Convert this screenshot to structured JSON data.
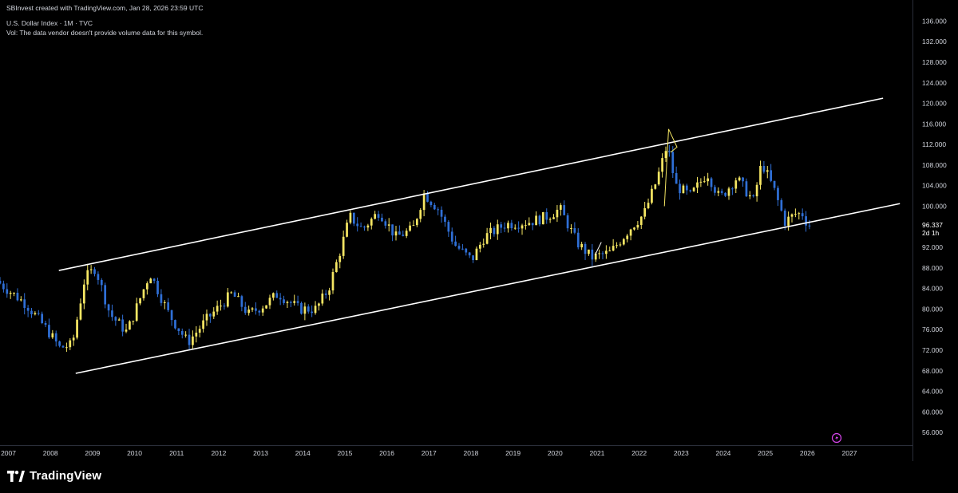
{
  "header": {
    "credit": "SBInvest created with TradingView.com, Jan 28, 2026 23:59 UTC",
    "symbol_line": "U.S. Dollar Index · 1M · TVC",
    "volume_line": "Vol: The data vendor doesn't provide volume data for this symbol."
  },
  "footer": {
    "brand": "TradingView"
  },
  "colors": {
    "background": "#000000",
    "bull_candle": "#f5e663",
    "bear_candle": "#2f6fd6",
    "channel_line": "#ffffff",
    "axis_text": "#d1d4dc"
  },
  "chart_data": {
    "type": "candlestick",
    "interval": "1M",
    "x_axis_ticks": [
      "2007",
      "2008",
      "2009",
      "2010",
      "2011",
      "2012",
      "2013",
      "2014",
      "2015",
      "2016",
      "2017",
      "2018",
      "2019",
      "2020",
      "2021",
      "2022",
      "2023",
      "2024",
      "2025",
      "2026",
      "2027"
    ],
    "y_axis_ticks": [
      "136.000",
      "132.000",
      "128.000",
      "124.000",
      "120.000",
      "116.000",
      "112.000",
      "108.000",
      "104.000",
      "100.000",
      "96.337",
      "92.000",
      "88.000",
      "84.000",
      "80.000",
      "76.000",
      "72.000",
      "68.000",
      "64.000",
      "60.000",
      "56.000"
    ],
    "ylim": [
      54,
      137
    ],
    "xlim": [
      2006.8,
      2028.5
    ],
    "last_price": {
      "value": 96.337,
      "label": "96.337",
      "countdown": "2d 1h"
    },
    "key_points": [
      {
        "t": 2006.8,
        "v": 85.5
      },
      {
        "t": 2007.5,
        "v": 81
      },
      {
        "t": 2008.0,
        "v": 76
      },
      {
        "t": 2008.3,
        "v": 72.5
      },
      {
        "t": 2008.6,
        "v": 73
      },
      {
        "t": 2008.9,
        "v": 86
      },
      {
        "t": 2009.15,
        "v": 88
      },
      {
        "t": 2009.5,
        "v": 79
      },
      {
        "t": 2009.9,
        "v": 75.5
      },
      {
        "t": 2010.45,
        "v": 87
      },
      {
        "t": 2010.9,
        "v": 79
      },
      {
        "t": 2011.35,
        "v": 73.5
      },
      {
        "t": 2011.8,
        "v": 78
      },
      {
        "t": 2012.4,
        "v": 83
      },
      {
        "t": 2012.8,
        "v": 79
      },
      {
        "t": 2013.2,
        "v": 81
      },
      {
        "t": 2013.5,
        "v": 83
      },
      {
        "t": 2014.0,
        "v": 80
      },
      {
        "t": 2014.4,
        "v": 80
      },
      {
        "t": 2014.7,
        "v": 84
      },
      {
        "t": 2015.0,
        "v": 92
      },
      {
        "t": 2015.2,
        "v": 98
      },
      {
        "t": 2015.5,
        "v": 95.5
      },
      {
        "t": 2015.9,
        "v": 99
      },
      {
        "t": 2016.3,
        "v": 94
      },
      {
        "t": 2016.7,
        "v": 95.5
      },
      {
        "t": 2016.97,
        "v": 102.5
      },
      {
        "t": 2017.3,
        "v": 99.5
      },
      {
        "t": 2017.7,
        "v": 92.5
      },
      {
        "t": 2018.1,
        "v": 89.5
      },
      {
        "t": 2018.4,
        "v": 94
      },
      {
        "t": 2018.9,
        "v": 96.5
      },
      {
        "t": 2019.5,
        "v": 97
      },
      {
        "t": 2019.9,
        "v": 98
      },
      {
        "t": 2020.2,
        "v": 99.5
      },
      {
        "t": 2020.6,
        "v": 93
      },
      {
        "t": 2020.95,
        "v": 90
      },
      {
        "t": 2021.4,
        "v": 91
      },
      {
        "t": 2021.9,
        "v": 96
      },
      {
        "t": 2022.2,
        "v": 98.5
      },
      {
        "t": 2022.5,
        "v": 105
      },
      {
        "t": 2022.75,
        "v": 112
      },
      {
        "t": 2022.95,
        "v": 104
      },
      {
        "t": 2023.3,
        "v": 102
      },
      {
        "t": 2023.7,
        "v": 106.5
      },
      {
        "t": 2024.0,
        "v": 101.5
      },
      {
        "t": 2024.4,
        "v": 105.5
      },
      {
        "t": 2024.8,
        "v": 101
      },
      {
        "t": 2025.0,
        "v": 108.5
      },
      {
        "t": 2025.3,
        "v": 103
      },
      {
        "t": 2025.55,
        "v": 97
      },
      {
        "t": 2025.8,
        "v": 98.5
      },
      {
        "t": 2026.0,
        "v": 98.5
      },
      {
        "t": 2026.08,
        "v": 96.3
      }
    ],
    "channel": {
      "upper": [
        {
          "t": 2008.2,
          "v": 87.5
        },
        {
          "t": 2027.8,
          "v": 121
        }
      ],
      "lower": [
        {
          "t": 2008.6,
          "v": 67.5
        },
        {
          "t": 2028.2,
          "v": 100.5
        }
      ]
    },
    "annotations": [
      {
        "type": "zigzag",
        "points": [
          {
            "t": 2022.6,
            "v": 100
          },
          {
            "t": 2022.7,
            "v": 115
          },
          {
            "t": 2022.9,
            "v": 111.5
          },
          {
            "t": 2022.75,
            "v": 110.5
          }
        ]
      },
      {
        "type": "arrow",
        "points": [
          {
            "t": 2020.95,
            "v": 90.5
          },
          {
            "t": 2021.1,
            "v": 93
          }
        ]
      }
    ]
  }
}
